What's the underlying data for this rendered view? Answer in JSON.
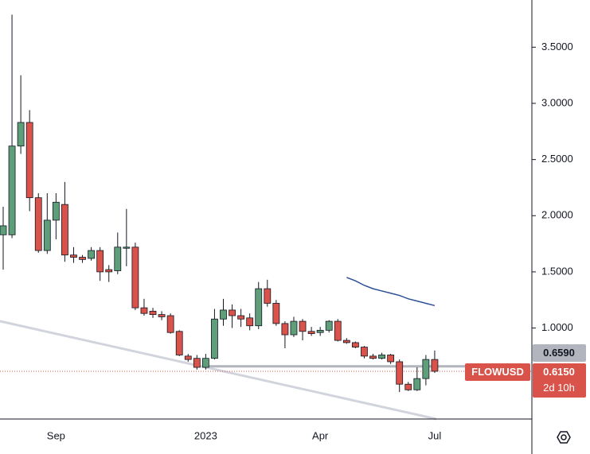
{
  "chart_data": {
    "type": "candlestick",
    "categories": [
      null,
      null,
      null,
      null,
      null,
      null,
      "Sep",
      null,
      null,
      null,
      null,
      null,
      null,
      null,
      null,
      null,
      null,
      null,
      null,
      null,
      null,
      null,
      null,
      "2023",
      null,
      null,
      null,
      null,
      null,
      null,
      null,
      null,
      null,
      null,
      null,
      null,
      "Apr",
      null,
      null,
      null,
      null,
      null,
      null,
      null,
      null,
      null,
      null,
      null,
      null,
      "Jul"
    ],
    "open": [
      1.83,
      1.83,
      2.62,
      2.83,
      2.16,
      1.69,
      1.96,
      2.1,
      1.65,
      1.63,
      1.62,
      1.69,
      1.52,
      1.51,
      1.71,
      1.72,
      1.18,
      1.15,
      1.12,
      1.11,
      0.97,
      0.75,
      0.73,
      0.65,
      0.73,
      1.08,
      1.16,
      1.11,
      1.09,
      1.02,
      1.35,
      1.22,
      1.04,
      0.94,
      1.06,
      0.97,
      0.96,
      0.98,
      1.06,
      0.89,
      0.87,
      0.83,
      0.75,
      0.73,
      0.76,
      0.7,
      0.5,
      0.45,
      0.55,
      0.72
    ],
    "high": [
      2.08,
      3.79,
      3.25,
      2.94,
      2.2,
      2.2,
      2.2,
      2.3,
      1.72,
      1.65,
      1.72,
      1.72,
      1.56,
      1.85,
      2.06,
      1.76,
      1.26,
      1.18,
      1.15,
      1.13,
      0.98,
      0.77,
      0.76,
      0.77,
      1.17,
      1.26,
      1.21,
      1.17,
      1.13,
      1.41,
      1.43,
      1.25,
      1.06,
      1.1,
      1.08,
      1.01,
      1.01,
      1.07,
      1.08,
      0.91,
      0.88,
      0.84,
      0.77,
      0.78,
      0.77,
      0.72,
      0.52,
      0.65,
      0.76,
      0.8
    ],
    "low": [
      1.52,
      1.8,
      2.55,
      2.04,
      1.67,
      1.66,
      1.79,
      1.59,
      1.58,
      1.58,
      1.6,
      1.42,
      1.41,
      1.48,
      1.55,
      1.16,
      1.11,
      1.09,
      1.07,
      0.95,
      0.75,
      0.7,
      0.63,
      0.63,
      0.72,
      1.02,
      1.0,
      1.01,
      0.98,
      0.99,
      1.19,
      1.02,
      0.82,
      0.92,
      0.89,
      0.93,
      0.93,
      0.96,
      0.88,
      0.86,
      0.82,
      0.73,
      0.72,
      0.72,
      0.68,
      0.43,
      0.44,
      0.44,
      0.49,
      0.6
    ],
    "close": [
      1.91,
      2.62,
      2.83,
      2.16,
      1.69,
      1.96,
      2.12,
      1.65,
      1.63,
      1.61,
      1.69,
      1.5,
      1.5,
      1.72,
      1.72,
      1.18,
      1.13,
      1.12,
      1.1,
      0.96,
      0.76,
      0.72,
      0.65,
      0.73,
      1.08,
      1.16,
      1.11,
      1.08,
      1.02,
      1.35,
      1.22,
      1.04,
      0.94,
      1.06,
      0.97,
      0.95,
      0.98,
      1.06,
      0.89,
      0.87,
      0.83,
      0.75,
      0.73,
      0.76,
      0.7,
      0.5,
      0.45,
      0.55,
      0.72,
      0.615
    ],
    "up_color": "#5e9e78",
    "down_color": "#d9534a",
    "overlay": {
      "color": "#2d4f96",
      "values": [
        null,
        null,
        null,
        null,
        null,
        null,
        null,
        null,
        null,
        null,
        null,
        null,
        null,
        null,
        null,
        null,
        null,
        null,
        null,
        null,
        null,
        null,
        null,
        null,
        null,
        null,
        null,
        null,
        null,
        null,
        null,
        null,
        null,
        null,
        null,
        null,
        null,
        null,
        null,
        1.45,
        1.42,
        1.38,
        1.35,
        1.33,
        1.31,
        1.29,
        1.26,
        1.24,
        1.22,
        1.2
      ]
    },
    "ylim": [
      0.19,
      3.92
    ],
    "yticks": [
      {
        "value": 1.0,
        "label": "1.0000"
      },
      {
        "value": 1.5,
        "label": "1.5000"
      },
      {
        "value": 2.0,
        "label": "2.0000"
      },
      {
        "value": 2.5,
        "label": "2.5000"
      },
      {
        "value": 3.0,
        "label": "3.0000"
      },
      {
        "value": 3.5,
        "label": "3.5000"
      }
    ],
    "level": {
      "value": 0.659,
      "label": "0.6590",
      "color": "#b2b5be"
    },
    "symbol": "FLOWUSD",
    "last_price": {
      "value": 0.615,
      "label": "0.6150"
    },
    "countdown": "2d 10h"
  }
}
